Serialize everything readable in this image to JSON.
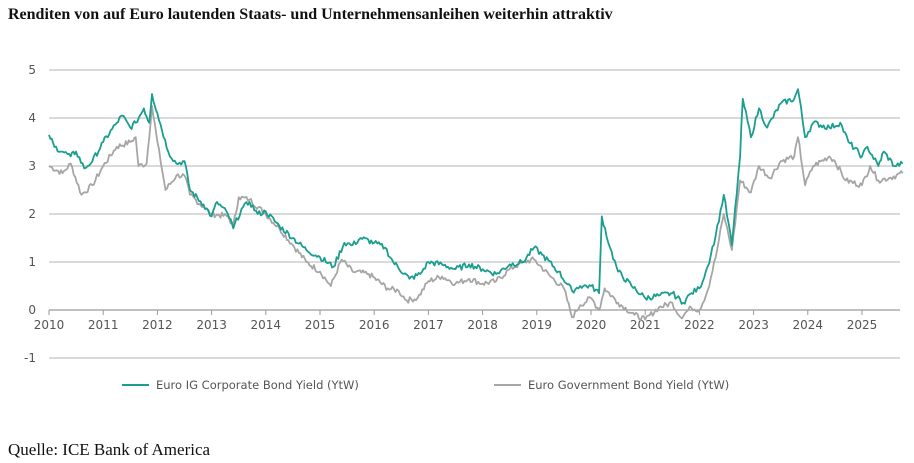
{
  "title": "Renditen von auf Euro lautenden Staats- und Unternehmensanleihen weiterhin attraktiv",
  "source": "Quelle: ICE Bank of America",
  "chart_data": {
    "type": "line",
    "title": "Renditen von auf Euro lautenden Staats- und Unternehmensanleihen weiterhin attraktiv",
    "xlabel": "",
    "ylabel": "",
    "xlim": [
      2010,
      2025.75
    ],
    "ylim": [
      -1,
      5
    ],
    "x_ticks": [
      "2010",
      "2011",
      "2012",
      "2013",
      "2014",
      "2015",
      "2016",
      "2017",
      "2018",
      "2019",
      "2020",
      "2021",
      "2022",
      "2023",
      "2024",
      "2025"
    ],
    "y_ticks": [
      "-1",
      "0",
      "1",
      "2",
      "3",
      "4",
      "5"
    ],
    "grid": true,
    "legend_position": "bottom",
    "series": [
      {
        "name": "Euro IG Corporate Bond Yield (YtW)",
        "color": "#1a9e8f",
        "x": [
          2010.0,
          2010.1,
          2010.25,
          2010.4,
          2010.5,
          2010.65,
          2010.8,
          2011.0,
          2011.25,
          2011.35,
          2011.5,
          2011.6,
          2011.75,
          2011.85,
          2011.9,
          2012.0,
          2012.2,
          2012.35,
          2012.5,
          2012.6,
          2012.85,
          2013.0,
          2013.1,
          2013.3,
          2013.4,
          2013.55,
          2013.7,
          2013.85,
          2014.0,
          2014.25,
          2014.5,
          2014.75,
          2015.0,
          2015.25,
          2015.45,
          2015.6,
          2015.75,
          2016.0,
          2016.2,
          2016.35,
          2016.65,
          2016.85,
          2017.0,
          2017.25,
          2017.5,
          2017.75,
          2018.0,
          2018.25,
          2018.5,
          2018.75,
          2018.95,
          2019.1,
          2019.4,
          2019.65,
          2019.8,
          2020.0,
          2020.15,
          2020.2,
          2020.35,
          2020.5,
          2020.75,
          2021.0,
          2021.25,
          2021.5,
          2021.7,
          2021.85,
          2022.0,
          2022.15,
          2022.3,
          2022.45,
          2022.6,
          2022.75,
          2022.8,
          2022.95,
          2023.1,
          2023.25,
          2023.5,
          2023.75,
          2023.82,
          2023.95,
          2024.1,
          2024.4,
          2024.6,
          2024.75,
          2025.0,
          2025.1,
          2025.3,
          2025.4,
          2025.6,
          2025.75
        ],
        "values": [
          3.65,
          3.4,
          3.3,
          3.2,
          3.3,
          2.95,
          3.1,
          3.5,
          3.9,
          4.05,
          3.8,
          3.9,
          4.2,
          3.9,
          4.5,
          4.1,
          3.3,
          3.05,
          3.1,
          2.5,
          2.2,
          1.95,
          2.25,
          2.0,
          1.7,
          2.1,
          2.25,
          2.0,
          2.05,
          1.75,
          1.5,
          1.25,
          1.1,
          0.9,
          1.4,
          1.35,
          1.5,
          1.4,
          1.3,
          1.0,
          0.65,
          0.75,
          1.0,
          0.95,
          0.85,
          0.95,
          0.85,
          0.75,
          0.95,
          1.0,
          1.3,
          1.15,
          0.8,
          0.4,
          0.5,
          0.5,
          0.35,
          1.95,
          1.3,
          0.8,
          0.5,
          0.25,
          0.3,
          0.35,
          0.15,
          0.35,
          0.45,
          0.9,
          1.55,
          2.4,
          1.35,
          3.2,
          4.4,
          3.6,
          4.2,
          3.8,
          4.3,
          4.4,
          4.6,
          3.6,
          3.9,
          3.8,
          3.9,
          3.5,
          3.2,
          3.4,
          3.0,
          3.3,
          3.0,
          3.05
        ]
      },
      {
        "name": "Euro Government Bond Yield (YtW)",
        "color": "#a6a6a6",
        "x": [
          2010.0,
          2010.25,
          2010.4,
          2010.6,
          2010.8,
          2011.0,
          2011.25,
          2011.5,
          2011.6,
          2011.65,
          2011.8,
          2011.9,
          2012.0,
          2012.15,
          2012.35,
          2012.5,
          2012.6,
          2012.85,
          2013.0,
          2013.3,
          2013.4,
          2013.5,
          2013.7,
          2014.0,
          2014.25,
          2014.5,
          2014.75,
          2015.0,
          2015.2,
          2015.4,
          2015.6,
          2015.9,
          2016.25,
          2016.45,
          2016.6,
          2016.8,
          2017.0,
          2017.25,
          2017.5,
          2017.75,
          2018.0,
          2018.25,
          2018.5,
          2018.75,
          2018.95,
          2019.25,
          2019.5,
          2019.65,
          2019.8,
          2020.0,
          2020.15,
          2020.25,
          2020.5,
          2020.8,
          2021.0,
          2021.25,
          2021.5,
          2021.65,
          2021.85,
          2022.0,
          2022.15,
          2022.3,
          2022.45,
          2022.6,
          2022.75,
          2022.95,
          2023.1,
          2023.3,
          2023.5,
          2023.75,
          2023.82,
          2023.95,
          2024.1,
          2024.4,
          2024.5,
          2024.7,
          2025.0,
          2025.15,
          2025.3,
          2025.5,
          2025.75
        ],
        "values": [
          3.0,
          2.85,
          3.05,
          2.4,
          2.6,
          3.0,
          3.4,
          3.5,
          3.6,
          3.0,
          3.05,
          4.25,
          3.5,
          2.5,
          2.8,
          2.8,
          2.4,
          2.15,
          2.0,
          1.95,
          1.75,
          2.35,
          2.3,
          2.0,
          1.7,
          1.35,
          1.0,
          0.8,
          0.5,
          1.05,
          0.8,
          0.75,
          0.45,
          0.4,
          0.2,
          0.25,
          0.6,
          0.7,
          0.55,
          0.65,
          0.55,
          0.6,
          0.85,
          1.0,
          1.05,
          0.7,
          0.45,
          -0.15,
          0.1,
          0.25,
          0.0,
          0.45,
          0.15,
          -0.1,
          -0.2,
          0.05,
          0.15,
          -0.15,
          0.05,
          0.0,
          0.4,
          1.1,
          2.0,
          1.25,
          2.7,
          2.45,
          3.0,
          2.75,
          3.1,
          3.2,
          3.6,
          2.6,
          3.0,
          3.2,
          3.1,
          2.7,
          2.6,
          3.0,
          2.7,
          2.75,
          2.85
        ]
      }
    ]
  }
}
